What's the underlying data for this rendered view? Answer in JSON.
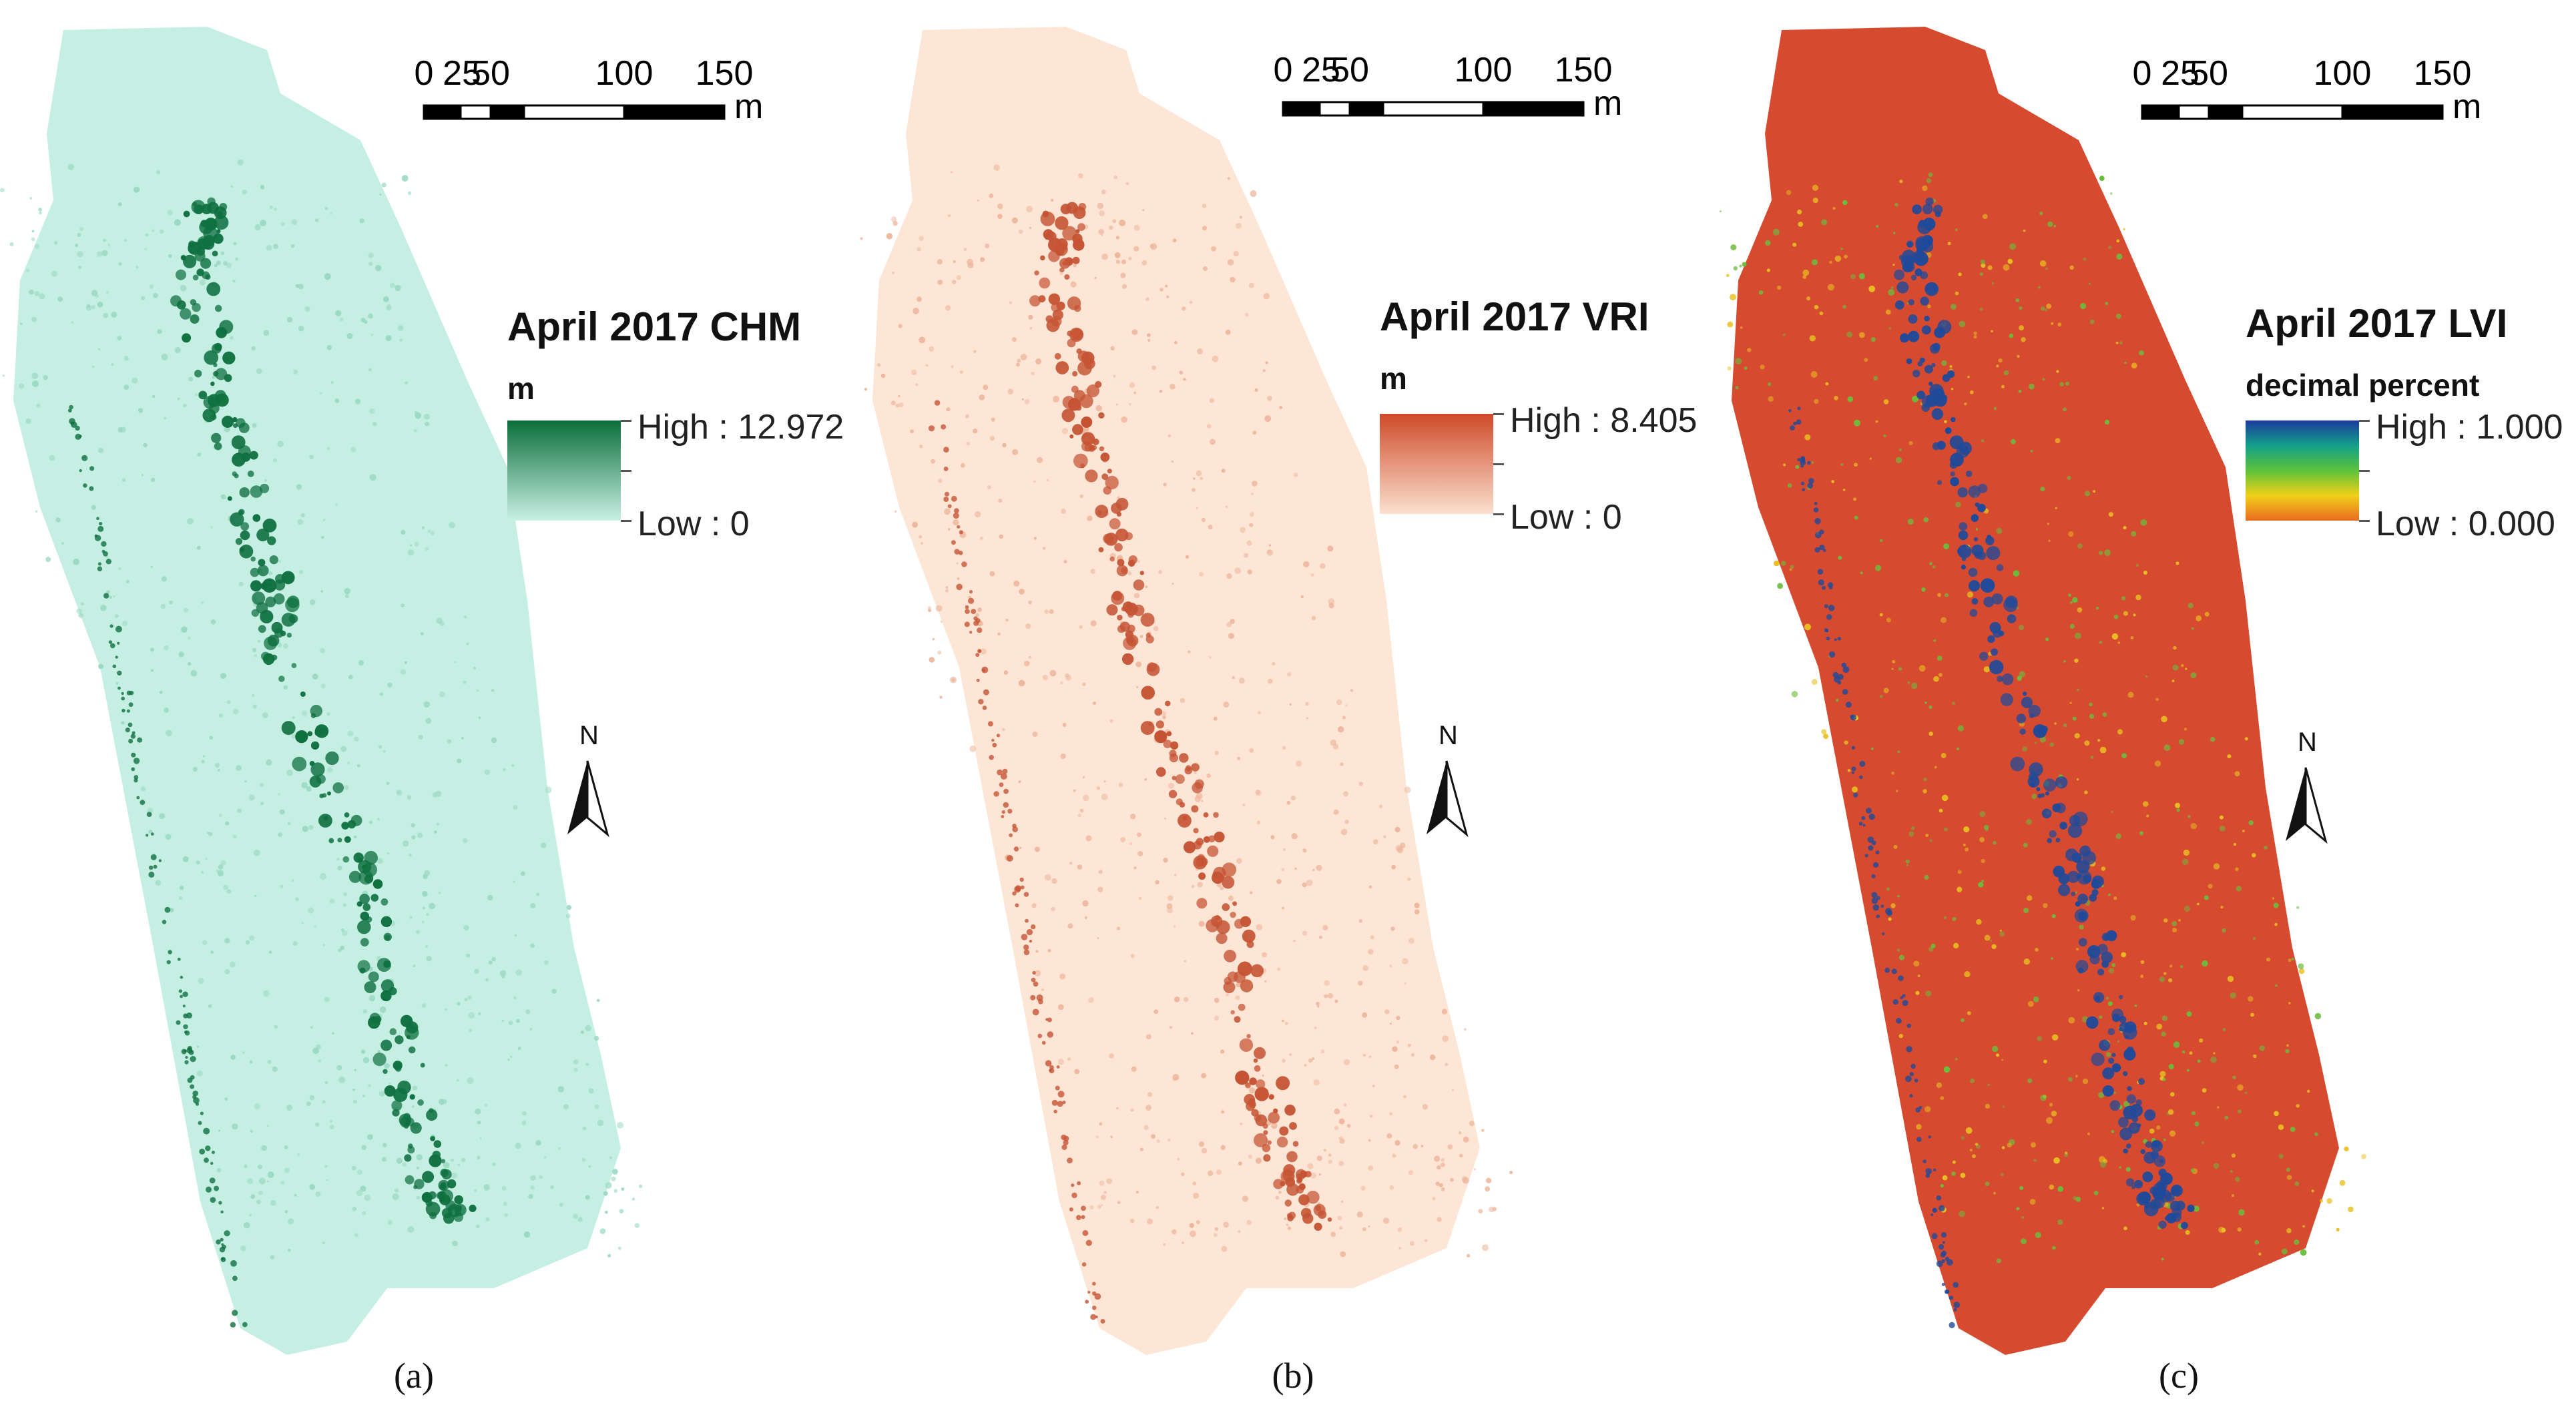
{
  "panels": [
    {
      "id": "a",
      "caption": "(a)",
      "legend": {
        "title": "April 2017 CHM",
        "unit": "m",
        "high": "High : 12.972",
        "low": "Low : 0",
        "ramp_colors": [
          "#0b6e3a",
          "#c8f0e4"
        ]
      },
      "colors": {
        "base": "#c5efe3",
        "feature": "#0f7040",
        "speckle": "#9bd9c2"
      },
      "scalebar": {
        "labels": [
          "0",
          "25",
          "50",
          "100",
          "150"
        ],
        "unit": "m"
      },
      "north": "N"
    },
    {
      "id": "b",
      "caption": "(b)",
      "legend": {
        "title": "April 2017 VRI",
        "unit": "m",
        "high": "High : 8.405",
        "low": "Low : 0",
        "ramp_colors": [
          "#cf4a2a",
          "#fbe0cf"
        ]
      },
      "colors": {
        "base": "#fde6d6",
        "feature": "#c55434",
        "speckle": "#edb79d"
      },
      "scalebar": {
        "labels": [
          "0",
          "25",
          "50",
          "100",
          "150"
        ],
        "unit": "m"
      },
      "north": "N"
    },
    {
      "id": "c",
      "caption": "(c)",
      "legend": {
        "title": "April 2017 LVI",
        "unit": "decimal percent",
        "high": "High : 1.000",
        "low": "Low : 0.000",
        "ramp_colors": [
          "#1b3a9e",
          "#13a08a",
          "#5cc23a",
          "#f2d018",
          "#e86a22"
        ]
      },
      "colors": {
        "base": "#d64b30",
        "feature": "#1f4a9a",
        "speckle": "#e8c020",
        "speckle2": "#6cbc3c"
      },
      "scalebar": {
        "labels": [
          "0",
          "25",
          "50",
          "100",
          "150"
        ],
        "unit": "m"
      },
      "north": "N"
    }
  ]
}
